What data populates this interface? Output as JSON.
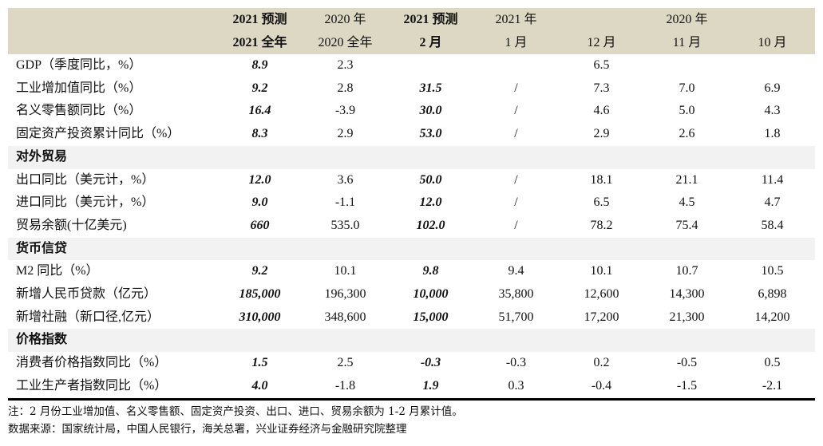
{
  "header": {
    "row1": [
      "2021 预测",
      "2020 年",
      "2021 预测",
      "2021 年",
      "2020 年"
    ],
    "row2": [
      "2021 全年",
      "2020 全年",
      "2 月",
      "1 月",
      "12 月",
      "11 月",
      "10 月"
    ]
  },
  "rows": [
    {
      "type": "data",
      "label": "GDP（季度同比，%）",
      "values": [
        "8.9",
        "2.3",
        "",
        "",
        "6.5",
        "",
        ""
      ]
    },
    {
      "type": "data",
      "label": "工业增加值同比（%）",
      "values": [
        "9.2",
        "2.8",
        "31.5",
        "/",
        "7.3",
        "7.0",
        "6.9"
      ]
    },
    {
      "type": "data",
      "label": "名义零售额同比（%）",
      "values": [
        "16.4",
        "-3.9",
        "30.0",
        "/",
        "4.6",
        "5.0",
        "4.3"
      ]
    },
    {
      "type": "data",
      "label": "固定资产投资累计同比（%）",
      "values": [
        "8.3",
        "2.9",
        "53.0",
        "/",
        "2.9",
        "2.6",
        "1.8"
      ]
    },
    {
      "type": "section",
      "label": "对外贸易"
    },
    {
      "type": "data",
      "label": "出口同比（美元计，%）",
      "values": [
        "12.0",
        "3.6",
        "50.0",
        "/",
        "18.1",
        "21.1",
        "11.4"
      ]
    },
    {
      "type": "data",
      "label": "进口同比（美元计，%）",
      "values": [
        "9.0",
        "-1.1",
        "12.0",
        "/",
        "6.5",
        "4.5",
        "4.7"
      ]
    },
    {
      "type": "data",
      "label": "贸易余额(十亿美元)",
      "values": [
        "660",
        "535.0",
        "102.0",
        "/",
        "78.2",
        "75.4",
        "58.4"
      ]
    },
    {
      "type": "section",
      "label": "货币信贷"
    },
    {
      "type": "data",
      "label": "M2 同比（%）",
      "values": [
        "9.2",
        "10.1",
        "9.8",
        "9.4",
        "10.1",
        "10.7",
        "10.5"
      ]
    },
    {
      "type": "data",
      "label": "新增人民币贷款（亿元）",
      "values": [
        "185,000",
        "196,300",
        "10,000",
        "35,800",
        "12,600",
        "14,300",
        "6,898"
      ]
    },
    {
      "type": "data",
      "label": "新增社融（新口径,亿元）",
      "values": [
        "310,000",
        "348,600",
        "15,000",
        "51,700",
        "17,200",
        "21,300",
        "14,200"
      ]
    },
    {
      "type": "section",
      "label": "价格指数"
    },
    {
      "type": "data",
      "label": "消费者价格指数同比（%）",
      "values": [
        "1.5",
        "2.5",
        "-0.3",
        "-0.3",
        "0.2",
        "-0.5",
        "0.5"
      ]
    },
    {
      "type": "data",
      "label": "工业生产者指数同比（%）",
      "values": [
        "4.0",
        "-1.8",
        "1.9",
        "0.3",
        "-0.4",
        "-1.5",
        "-2.1"
      ]
    }
  ],
  "notes": {
    "note": "注：2 月份工业增加值、名义零售额、固定资产投资、出口、进口、贸易余额为 1-2 月累计值。",
    "source": "数据来源：国家统计局，中国人民银行，海关总署，兴业证券经济与金融研究院整理"
  },
  "colors": {
    "header_bg": "#ddd8c4",
    "section_bg": "#f2f2f2"
  }
}
